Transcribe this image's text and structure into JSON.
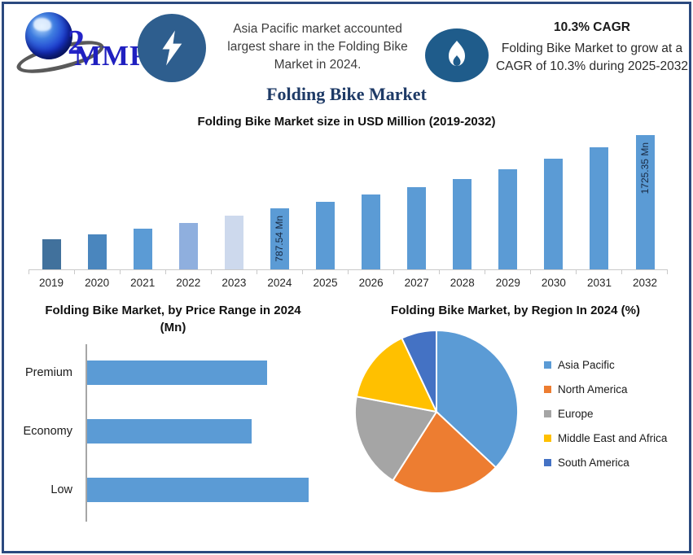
{
  "header": {
    "logo": {
      "text": "MMR",
      "swoosh_digit": "2"
    },
    "statement": "Asia Pacific market accounted largest share in the Folding Bike Market in 2024.",
    "cagr_title": "10.3% CAGR",
    "cagr_text": "Folding Bike Market to grow at a CAGR of 10.3% during 2025-2032"
  },
  "main_title": "Folding Bike Market",
  "colors": {
    "frame_border": "#2b4a7f",
    "bolt_badge": "#2e5e8e",
    "flame_badge": "#1f5c8b",
    "primary_bar": "#5B9BD5"
  },
  "chart_data": [
    {
      "id": "market-size",
      "type": "bar",
      "title": "Folding Bike Market size in USD Million (2019-2032)",
      "ylabel": "USD Million",
      "categories": [
        "2019",
        "2020",
        "2021",
        "2022",
        "2023",
        "2024",
        "2025",
        "2026",
        "2027",
        "2028",
        "2029",
        "2030",
        "2031",
        "2032"
      ],
      "values": [
        385,
        445,
        520,
        600,
        690,
        787.54,
        868.66,
        958.13,
        1056.82,
        1165.67,
        1285.73,
        1418.16,
        1564.23,
        1725.35
      ],
      "ylim": [
        0,
        1800
      ],
      "grid": false,
      "bar_colors": [
        "#41719C",
        "#4A86BE",
        "#5B9BD5",
        "#8FAFDE",
        "#CDD9ED",
        "#5B9BD5",
        "#5B9BD5",
        "#5B9BD5",
        "#5B9BD5",
        "#5B9BD5",
        "#5B9BD5",
        "#5B9BD5",
        "#5B9BD5",
        "#5B9BD5"
      ],
      "bar_labels": {
        "2024": "787.54 Mn",
        "2032": "1725.35 Mn"
      }
    },
    {
      "id": "price-range",
      "type": "bar_horizontal",
      "title": "Folding Bike Market, by Price Range in 2024 (Mn)",
      "categories": [
        "Premium",
        "Economy",
        "Low"
      ],
      "values": [
        250,
        229,
        308
      ],
      "bar_color": "#5B9BD5",
      "grid": false
    },
    {
      "id": "region-share",
      "type": "pie",
      "title": "Folding Bike Market, by Region In 2024 (%)",
      "legend_position": "right",
      "slices": [
        {
          "label": "Asia Pacific",
          "value": 37,
          "color": "#5B9BD5"
        },
        {
          "label": "North America",
          "value": 22,
          "color": "#ED7D31"
        },
        {
          "label": "Europe",
          "value": 19,
          "color": "#A5A5A5"
        },
        {
          "label": "Middle East and Africa",
          "value": 15,
          "color": "#FFC000"
        },
        {
          "label": "South America",
          "value": 7,
          "color": "#4472C4"
        }
      ]
    }
  ]
}
